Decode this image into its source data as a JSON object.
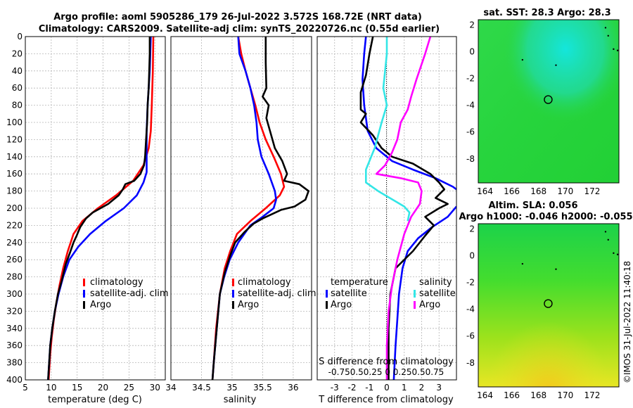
{
  "header": {
    "line1": "Argo profile: aoml 5905286_179 26-Jul-2022 3.572S 168.72E (NRT data)",
    "line2": "Climatology: CARS2009. Satellite-adj clim: synTS_20220726.nc (0.55d earlier)"
  },
  "timestamp": "©IMOS 31-Jul-2022 11:40:18",
  "colors": {
    "climatology": "#ff0000",
    "satellite": "#0000ff",
    "argo": "#000000",
    "sat_salinity": "#33e6e6",
    "argo_salinity": "#ff00ff",
    "map_green": "#29d629",
    "map_cyan": "#10e0d0"
  },
  "chart_data": [
    {
      "id": "temperature",
      "type": "line",
      "xlabel": "temperature (deg C)",
      "ylabel": "",
      "xlim": [
        5,
        32
      ],
      "ylim": [
        400,
        0
      ],
      "xticks": [
        5,
        10,
        15,
        20,
        25,
        30
      ],
      "yticks": [
        0,
        20,
        40,
        60,
        80,
        100,
        120,
        140,
        160,
        180,
        200,
        220,
        240,
        260,
        280,
        300,
        320,
        340,
        360,
        380,
        400
      ],
      "legend": [
        "climatology",
        "satellite-adj. clim",
        "Argo"
      ],
      "series": [
        {
          "name": "climatology",
          "color": "#ff0000",
          "points": [
            [
              29.7,
              0
            ],
            [
              29.6,
              40
            ],
            [
              29.4,
              80
            ],
            [
              29.2,
              110
            ],
            [
              28.8,
              130
            ],
            [
              27.8,
              150
            ],
            [
              25.8,
              168
            ],
            [
              22.5,
              185
            ],
            [
              19.0,
              200
            ],
            [
              16.0,
              215
            ],
            [
              14.3,
              230
            ],
            [
              13.2,
              250
            ],
            [
              12.3,
              270
            ],
            [
              11.6,
              290
            ],
            [
              11.0,
              310
            ],
            [
              10.5,
              330
            ],
            [
              10.1,
              350
            ],
            [
              9.8,
              370
            ],
            [
              9.6,
              390
            ],
            [
              9.5,
              400
            ]
          ]
        },
        {
          "name": "satellite-adj. clim",
          "color": "#0000ff",
          "points": [
            [
              29.2,
              0
            ],
            [
              29.0,
              40
            ],
            [
              28.6,
              80
            ],
            [
              28.4,
              110
            ],
            [
              28.4,
              140
            ],
            [
              28.4,
              158
            ],
            [
              27.8,
              170
            ],
            [
              26.5,
              185
            ],
            [
              24.0,
              200
            ],
            [
              20.5,
              215
            ],
            [
              17.5,
              230
            ],
            [
              15.2,
              245
            ],
            [
              13.5,
              260
            ],
            [
              12.3,
              280
            ],
            [
              11.4,
              300
            ],
            [
              10.7,
              320
            ],
            [
              10.2,
              340
            ],
            [
              9.8,
              360
            ],
            [
              9.6,
              380
            ],
            [
              9.4,
              400
            ]
          ]
        },
        {
          "name": "Argo",
          "color": "#000000",
          "points": [
            [
              29.0,
              0
            ],
            [
              29.0,
              20
            ],
            [
              28.9,
              40
            ],
            [
              28.8,
              60
            ],
            [
              28.6,
              80
            ],
            [
              28.5,
              100
            ],
            [
              28.3,
              120
            ],
            [
              28.1,
              140
            ],
            [
              27.9,
              150
            ],
            [
              27.2,
              160
            ],
            [
              26.0,
              168
            ],
            [
              24.3,
              172
            ],
            [
              23.8,
              178
            ],
            [
              23.0,
              185
            ],
            [
              22.0,
              190
            ],
            [
              21.0,
              195
            ],
            [
              19.5,
              200
            ],
            [
              18.0,
              205
            ],
            [
              16.7,
              212
            ],
            [
              15.6,
              222
            ],
            [
              14.9,
              232
            ],
            [
              14.3,
              240
            ],
            [
              13.6,
              252
            ],
            [
              12.8,
              265
            ],
            [
              12.0,
              285
            ],
            [
              11.3,
              300
            ],
            [
              10.7,
              320
            ],
            [
              10.2,
              340
            ],
            [
              9.8,
              360
            ],
            [
              9.6,
              380
            ],
            [
              9.4,
              400
            ]
          ]
        }
      ]
    },
    {
      "id": "salinity",
      "type": "line",
      "xlabel": "salinity",
      "ylabel": "",
      "xlim": [
        34.0,
        36.3
      ],
      "ylim": [
        400,
        0
      ],
      "xticks": [
        "34",
        "34.5",
        "35",
        "35.5",
        "36"
      ],
      "legend": [
        "climatology",
        "satellite-adj. clim",
        "Argo"
      ],
      "series": [
        {
          "name": "climatology",
          "color": "#ff0000",
          "points": [
            [
              35.1,
              0
            ],
            [
              35.15,
              20
            ],
            [
              35.22,
              40
            ],
            [
              35.3,
              60
            ],
            [
              35.38,
              80
            ],
            [
              35.45,
              100
            ],
            [
              35.55,
              120
            ],
            [
              35.68,
              140
            ],
            [
              35.8,
              160
            ],
            [
              35.85,
              175
            ],
            [
              35.78,
              185
            ],
            [
              35.55,
              200
            ],
            [
              35.3,
              215
            ],
            [
              35.08,
              230
            ],
            [
              34.97,
              250
            ],
            [
              34.88,
              270
            ],
            [
              34.8,
              300
            ],
            [
              34.74,
              340
            ],
            [
              34.7,
              380
            ],
            [
              34.68,
              400
            ]
          ]
        },
        {
          "name": "satellite-adj. clim",
          "color": "#0000ff",
          "points": [
            [
              35.1,
              0
            ],
            [
              35.12,
              20
            ],
            [
              35.22,
              40
            ],
            [
              35.3,
              60
            ],
            [
              35.36,
              80
            ],
            [
              35.4,
              100
            ],
            [
              35.42,
              120
            ],
            [
              35.48,
              140
            ],
            [
              35.6,
              160
            ],
            [
              35.7,
              180
            ],
            [
              35.72,
              190
            ],
            [
              35.68,
              200
            ],
            [
              35.5,
              210
            ],
            [
              35.3,
              220
            ],
            [
              35.1,
              240
            ],
            [
              34.96,
              260
            ],
            [
              34.87,
              280
            ],
            [
              34.8,
              300
            ],
            [
              34.75,
              340
            ],
            [
              34.7,
              380
            ],
            [
              34.68,
              400
            ]
          ]
        },
        {
          "name": "Argo",
          "color": "#000000",
          "points": [
            [
              35.55,
              0
            ],
            [
              35.55,
              30
            ],
            [
              35.56,
              60
            ],
            [
              35.5,
              70
            ],
            [
              35.6,
              80
            ],
            [
              35.56,
              95
            ],
            [
              35.62,
              110
            ],
            [
              35.7,
              130
            ],
            [
              35.82,
              145
            ],
            [
              35.9,
              160
            ],
            [
              35.85,
              168
            ],
            [
              36.1,
              172
            ],
            [
              36.25,
              180
            ],
            [
              36.2,
              190
            ],
            [
              36.02,
              198
            ],
            [
              35.8,
              202
            ],
            [
              35.5,
              212
            ],
            [
              35.35,
              218
            ],
            [
              35.2,
              228
            ],
            [
              35.05,
              240
            ],
            [
              34.97,
              255
            ],
            [
              34.88,
              275
            ],
            [
              34.8,
              300
            ],
            [
              34.75,
              340
            ],
            [
              34.7,
              380
            ],
            [
              34.68,
              400
            ]
          ]
        }
      ]
    },
    {
      "id": "difference",
      "type": "line",
      "xlabel": "T difference from climatology",
      "top_label": "S difference from climatology",
      "top_ticks": "-0.750.50.25  0  0.250.50.75",
      "ylabel": "",
      "xlim": [
        -4,
        4
      ],
      "ylim": [
        400,
        0
      ],
      "xticks": [
        -3,
        -2,
        -1,
        0,
        1,
        2,
        3
      ],
      "legend_titles": [
        "temperature",
        "salinity"
      ],
      "legend": [
        "satellite",
        "Argo",
        "satellite",
        "Argo"
      ],
      "series": [
        {
          "name": "temperature satellite",
          "color": "#0000ff",
          "points": [
            [
              -1.2,
              0
            ],
            [
              -1.3,
              20
            ],
            [
              -1.4,
              50
            ],
            [
              -1.3,
              80
            ],
            [
              -1.1,
              110
            ],
            [
              -0.6,
              130
            ],
            [
              0.3,
              145
            ],
            [
              1.5,
              155
            ],
            [
              2.8,
              165
            ],
            [
              3.8,
              175
            ],
            [
              4.0,
              178
            ]
          ]
        },
        {
          "name": "temperature satellite (lower)",
          "color": "#0000ff",
          "points": [
            [
              4.0,
              198
            ],
            [
              3.5,
              210
            ],
            [
              2.6,
              222
            ],
            [
              1.8,
              235
            ],
            [
              1.2,
              250
            ],
            [
              0.9,
              270
            ],
            [
              0.7,
              300
            ],
            [
              0.6,
              330
            ],
            [
              0.5,
              360
            ],
            [
              0.4,
              400
            ]
          ]
        },
        {
          "name": "temperature Argo",
          "color": "#000000",
          "points": [
            [
              -0.8,
              0
            ],
            [
              -1.0,
              20
            ],
            [
              -1.2,
              45
            ],
            [
              -1.5,
              65
            ],
            [
              -1.5,
              85
            ],
            [
              -1.2,
              90
            ],
            [
              -1.5,
              100
            ],
            [
              -0.8,
              115
            ],
            [
              -0.3,
              130
            ],
            [
              0.3,
              140
            ],
            [
              1.5,
              148
            ],
            [
              2.5,
              160
            ],
            [
              3.0,
              170
            ],
            [
              3.3,
              178
            ],
            [
              2.8,
              188
            ],
            [
              3.5,
              195
            ],
            [
              3.0,
              200
            ],
            [
              2.2,
              210
            ],
            [
              2.7,
              220
            ],
            [
              2.2,
              232
            ],
            [
              1.5,
              250
            ],
            [
              0.5,
              270
            ],
            [
              0.2,
              300
            ],
            [
              0.1,
              340
            ],
            [
              0.1,
              380
            ],
            [
              0.1,
              400
            ]
          ]
        },
        {
          "name": "salinity satellite",
          "color": "#33e6e6",
          "points": [
            [
              0.0,
              0
            ],
            [
              0.0,
              20
            ],
            [
              -0.1,
              40
            ],
            [
              -0.2,
              60
            ],
            [
              0.0,
              80
            ],
            [
              -0.3,
              100
            ],
            [
              -0.7,
              130
            ],
            [
              -1.2,
              155
            ],
            [
              -1.2,
              170
            ],
            [
              -0.5,
              180
            ],
            [
              0.5,
              192
            ],
            [
              1.0,
              198
            ],
            [
              1.3,
              205
            ],
            [
              1.2,
              215
            ]
          ]
        },
        {
          "name": "salinity Argo",
          "color": "#ff00ff",
          "points": [
            [
              2.5,
              0
            ],
            [
              2.2,
              20
            ],
            [
              1.7,
              50
            ],
            [
              1.4,
              70
            ],
            [
              1.2,
              85
            ],
            [
              0.8,
              100
            ],
            [
              0.6,
              120
            ],
            [
              0.3,
              135
            ],
            [
              -0.1,
              150
            ],
            [
              -0.6,
              160
            ],
            [
              0.8,
              165
            ],
            [
              1.8,
              170
            ],
            [
              2.0,
              180
            ],
            [
              1.9,
              195
            ],
            [
              1.4,
              210
            ],
            [
              1.0,
              230
            ],
            [
              0.6,
              260
            ],
            [
              0.3,
              290
            ],
            [
              0.1,
              320
            ],
            [
              0.0,
              360
            ],
            [
              0.0,
              400
            ]
          ]
        }
      ]
    },
    {
      "id": "sst_map",
      "type": "heatmap",
      "title": "sat. SST: 28.3 Argo: 28.3",
      "xlim": [
        163.5,
        174
      ],
      "ylim": [
        -9.8,
        2.4
      ],
      "xticks": [
        164,
        166,
        168,
        170,
        172
      ],
      "yticks": [
        2,
        0,
        -2,
        -4,
        -6,
        -8
      ],
      "marker": [
        168.72,
        -3.572
      ]
    },
    {
      "id": "sla_map",
      "type": "heatmap",
      "title": "Altim. SLA: 0.056",
      "subtitle": "Argo h1000: -0.046 h2000: -0.055",
      "xlim": [
        163.5,
        174
      ],
      "ylim": [
        -9.8,
        2.4
      ],
      "xticks": [
        164,
        166,
        168,
        170,
        172
      ],
      "yticks": [
        2,
        0,
        -2,
        -4,
        -6,
        -8
      ],
      "marker": [
        168.72,
        -3.572
      ]
    }
  ]
}
